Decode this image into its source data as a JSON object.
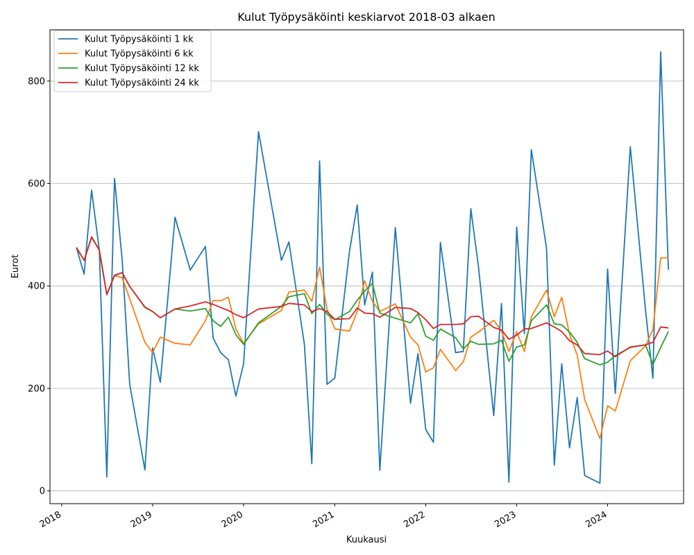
{
  "chart_data": {
    "type": "line",
    "title": "Kulut Työpysäköinti keskiarvot 2018-03 alkaen",
    "xlabel": "Kuukausi",
    "ylabel": "Eurot",
    "x_ticks": [
      "2018",
      "2019",
      "2020",
      "2021",
      "2022",
      "2023",
      "2024"
    ],
    "y_ticks": [
      0,
      200,
      400,
      600,
      800
    ],
    "xlim": [
      "2017-11-15",
      "2024-11-01"
    ],
    "ylim": [
      -25,
      900
    ],
    "grid": "y",
    "legend_position": "top-left",
    "series": [
      {
        "name": "Kulut Työpysäköinti 1 kk",
        "color": "#1f77b4",
        "points": [
          [
            "2018-03",
            475
          ],
          [
            "2018-04",
            423
          ],
          [
            "2018-05",
            587
          ],
          [
            "2018-06",
            470
          ],
          [
            "2018-07",
            27
          ],
          [
            "2018-08",
            610
          ],
          [
            "2018-09",
            450
          ],
          [
            "2018-10",
            208
          ],
          [
            "2018-12",
            41
          ],
          [
            "2019-01",
            279
          ],
          [
            "2019-02",
            212
          ],
          [
            "2019-04",
            534
          ],
          [
            "2019-06",
            431
          ],
          [
            "2019-08",
            477
          ],
          [
            "2019-09",
            298
          ],
          [
            "2019-10",
            270
          ],
          [
            "2019-11",
            256
          ],
          [
            "2019-12",
            185
          ],
          [
            "2020-01",
            248
          ],
          [
            "2020-03",
            701
          ],
          [
            "2020-06",
            450
          ],
          [
            "2020-07",
            486
          ],
          [
            "2020-09",
            286
          ],
          [
            "2020-10",
            53
          ],
          [
            "2020-11",
            644
          ],
          [
            "2020-12",
            208
          ],
          [
            "2021-01",
            220
          ],
          [
            "2021-03",
            467
          ],
          [
            "2021-04",
            558
          ],
          [
            "2021-05",
            363
          ],
          [
            "2021-06",
            427
          ],
          [
            "2021-07",
            40
          ],
          [
            "2021-09",
            514
          ],
          [
            "2021-11",
            171
          ],
          [
            "2021-12",
            268
          ],
          [
            "2022-01",
            120
          ],
          [
            "2022-02",
            95
          ],
          [
            "2022-03",
            485
          ],
          [
            "2022-05",
            270
          ],
          [
            "2022-06",
            272
          ],
          [
            "2022-07",
            551
          ],
          [
            "2022-08",
            437
          ],
          [
            "2022-10",
            147
          ],
          [
            "2022-11",
            366
          ],
          [
            "2022-12",
            17
          ],
          [
            "2023-01",
            515
          ],
          [
            "2023-02",
            307
          ],
          [
            "2023-03",
            666
          ],
          [
            "2023-05",
            474
          ],
          [
            "2023-06",
            50
          ],
          [
            "2023-07",
            248
          ],
          [
            "2023-08",
            84
          ],
          [
            "2023-09",
            182
          ],
          [
            "2023-10",
            30
          ],
          [
            "2023-12",
            15
          ],
          [
            "2024-01",
            433
          ],
          [
            "2024-02",
            190
          ],
          [
            "2024-04",
            672
          ],
          [
            "2024-06",
            353
          ],
          [
            "2024-07",
            220
          ],
          [
            "2024-08",
            857
          ],
          [
            "2024-09",
            432
          ]
        ]
      },
      {
        "name": "Kulut Työpysäköinti 6 kk",
        "color": "#ff7f0e",
        "points": [
          [
            "2018-03",
            475
          ],
          [
            "2018-04",
            450
          ],
          [
            "2018-05",
            496
          ],
          [
            "2018-06",
            470
          ],
          [
            "2018-07",
            383
          ],
          [
            "2018-08",
            420
          ],
          [
            "2018-09",
            416
          ],
          [
            "2018-10",
            375
          ],
          [
            "2018-12",
            290
          ],
          [
            "2019-01",
            270
          ],
          [
            "2019-02",
            300
          ],
          [
            "2019-04",
            288
          ],
          [
            "2019-06",
            285
          ],
          [
            "2019-08",
            332
          ],
          [
            "2019-09",
            372
          ],
          [
            "2019-10",
            371
          ],
          [
            "2019-11",
            378
          ],
          [
            "2019-12",
            316
          ],
          [
            "2020-01",
            288
          ],
          [
            "2020-03",
            326
          ],
          [
            "2020-06",
            352
          ],
          [
            "2020-07",
            388
          ],
          [
            "2020-09",
            392
          ],
          [
            "2020-10",
            370
          ],
          [
            "2020-11",
            437
          ],
          [
            "2020-12",
            355
          ],
          [
            "2021-01",
            316
          ],
          [
            "2021-03",
            312
          ],
          [
            "2021-04",
            350
          ],
          [
            "2021-05",
            410
          ],
          [
            "2021-06",
            370
          ],
          [
            "2021-07",
            350
          ],
          [
            "2021-09",
            365
          ],
          [
            "2021-11",
            300
          ],
          [
            "2021-12",
            285
          ],
          [
            "2022-01",
            232
          ],
          [
            "2022-02",
            240
          ],
          [
            "2022-03",
            276
          ],
          [
            "2022-05",
            235
          ],
          [
            "2022-06",
            252
          ],
          [
            "2022-07",
            300
          ],
          [
            "2022-08",
            310
          ],
          [
            "2022-10",
            333
          ],
          [
            "2022-11",
            312
          ],
          [
            "2022-12",
            272
          ],
          [
            "2023-01",
            311
          ],
          [
            "2023-02",
            272
          ],
          [
            "2023-03",
            340
          ],
          [
            "2023-05",
            392
          ],
          [
            "2023-06",
            340
          ],
          [
            "2023-07",
            378
          ],
          [
            "2023-08",
            306
          ],
          [
            "2023-09",
            265
          ],
          [
            "2023-10",
            178
          ],
          [
            "2023-12",
            102
          ],
          [
            "2024-01",
            166
          ],
          [
            "2024-02",
            156
          ],
          [
            "2024-04",
            254
          ],
          [
            "2024-06",
            283
          ],
          [
            "2024-07",
            315
          ],
          [
            "2024-08",
            455
          ],
          [
            "2024-09",
            455
          ]
        ]
      },
      {
        "name": "Kulut Työpysäköinti 12 kk",
        "color": "#2ca02c",
        "points": [
          [
            "2018-03",
            475
          ],
          [
            "2018-04",
            450
          ],
          [
            "2018-05",
            496
          ],
          [
            "2018-06",
            470
          ],
          [
            "2018-07",
            383
          ],
          [
            "2018-08",
            420
          ],
          [
            "2018-09",
            426
          ],
          [
            "2018-10",
            399
          ],
          [
            "2018-12",
            358
          ],
          [
            "2019-01",
            350
          ],
          [
            "2019-02",
            338
          ],
          [
            "2019-04",
            355
          ],
          [
            "2019-06",
            351
          ],
          [
            "2019-08",
            356
          ],
          [
            "2019-09",
            332
          ],
          [
            "2019-10",
            321
          ],
          [
            "2019-11",
            339
          ],
          [
            "2019-12",
            305
          ],
          [
            "2020-01",
            286
          ],
          [
            "2020-03",
            328
          ],
          [
            "2020-06",
            360
          ],
          [
            "2020-07",
            379
          ],
          [
            "2020-09",
            385
          ],
          [
            "2020-10",
            346
          ],
          [
            "2020-11",
            364
          ],
          [
            "2020-12",
            345
          ],
          [
            "2021-01",
            334
          ],
          [
            "2021-03",
            350
          ],
          [
            "2021-04",
            372
          ],
          [
            "2021-05",
            390
          ],
          [
            "2021-06",
            405
          ],
          [
            "2021-07",
            347
          ],
          [
            "2021-09",
            337
          ],
          [
            "2021-11",
            328
          ],
          [
            "2021-12",
            346
          ],
          [
            "2022-01",
            302
          ],
          [
            "2022-02",
            294
          ],
          [
            "2022-03",
            316
          ],
          [
            "2022-05",
            299
          ],
          [
            "2022-06",
            277
          ],
          [
            "2022-07",
            292
          ],
          [
            "2022-08",
            286
          ],
          [
            "2022-10",
            287
          ],
          [
            "2022-11",
            294
          ],
          [
            "2022-12",
            253
          ],
          [
            "2023-01",
            281
          ],
          [
            "2023-02",
            285
          ],
          [
            "2023-03",
            332
          ],
          [
            "2023-05",
            363
          ],
          [
            "2023-06",
            326
          ],
          [
            "2023-07",
            324
          ],
          [
            "2023-08",
            310
          ],
          [
            "2023-09",
            290
          ],
          [
            "2023-10",
            258
          ],
          [
            "2023-12",
            246
          ],
          [
            "2024-01",
            251
          ],
          [
            "2024-02",
            264
          ],
          [
            "2024-04",
            280
          ],
          [
            "2024-06",
            285
          ],
          [
            "2024-07",
            247
          ],
          [
            "2024-08",
            280
          ],
          [
            "2024-09",
            311
          ]
        ]
      },
      {
        "name": "Kulut Työpysäköinti 24 kk",
        "color": "#d62728",
        "points": [
          [
            "2018-03",
            475
          ],
          [
            "2018-04",
            450
          ],
          [
            "2018-05",
            495
          ],
          [
            "2018-06",
            470
          ],
          [
            "2018-07",
            383
          ],
          [
            "2018-08",
            421
          ],
          [
            "2018-09",
            426
          ],
          [
            "2018-10",
            399
          ],
          [
            "2018-12",
            359
          ],
          [
            "2019-01",
            350
          ],
          [
            "2019-02",
            338
          ],
          [
            "2019-04",
            355
          ],
          [
            "2019-06",
            361
          ],
          [
            "2019-08",
            369
          ],
          [
            "2019-09",
            364
          ],
          [
            "2019-10",
            358
          ],
          [
            "2019-11",
            352
          ],
          [
            "2019-12",
            344
          ],
          [
            "2020-01",
            338
          ],
          [
            "2020-03",
            355
          ],
          [
            "2020-06",
            360
          ],
          [
            "2020-07",
            366
          ],
          [
            "2020-09",
            363
          ],
          [
            "2020-10",
            350
          ],
          [
            "2020-11",
            356
          ],
          [
            "2020-12",
            350
          ],
          [
            "2021-01",
            335
          ],
          [
            "2021-03",
            336
          ],
          [
            "2021-04",
            357
          ],
          [
            "2021-05",
            347
          ],
          [
            "2021-06",
            346
          ],
          [
            "2021-07",
            339
          ],
          [
            "2021-09",
            358
          ],
          [
            "2021-11",
            356
          ],
          [
            "2021-12",
            348
          ],
          [
            "2022-01",
            334
          ],
          [
            "2022-02",
            317
          ],
          [
            "2022-03",
            325
          ],
          [
            "2022-05",
            325
          ],
          [
            "2022-06",
            326
          ],
          [
            "2022-07",
            340
          ],
          [
            "2022-08",
            341
          ],
          [
            "2022-10",
            319
          ],
          [
            "2022-11",
            314
          ],
          [
            "2022-12",
            296
          ],
          [
            "2023-01",
            304
          ],
          [
            "2023-02",
            316
          ],
          [
            "2023-03",
            317
          ],
          [
            "2023-05",
            328
          ],
          [
            "2023-06",
            320
          ],
          [
            "2023-07",
            311
          ],
          [
            "2023-08",
            293
          ],
          [
            "2023-09",
            285
          ],
          [
            "2023-10",
            268
          ],
          [
            "2023-12",
            266
          ],
          [
            "2024-01",
            273
          ],
          [
            "2024-02",
            262
          ],
          [
            "2024-04",
            281
          ],
          [
            "2024-06",
            285
          ],
          [
            "2024-07",
            290
          ],
          [
            "2024-08",
            320
          ],
          [
            "2024-09",
            318
          ]
        ]
      }
    ]
  }
}
